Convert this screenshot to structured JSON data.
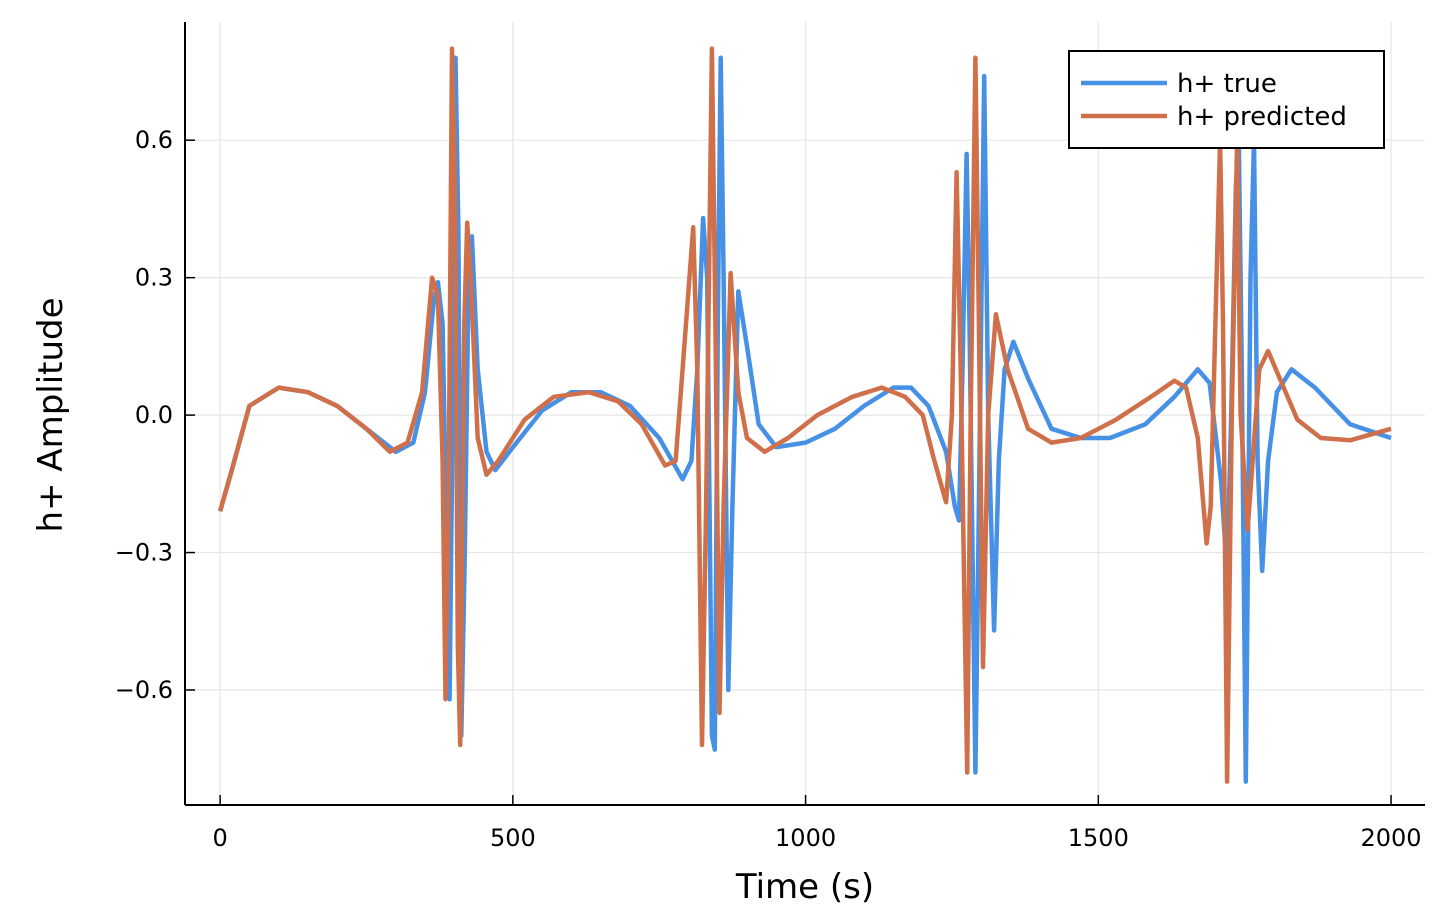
{
  "chart_data": {
    "type": "line",
    "xlabel": "Time (s)",
    "ylabel": "h+ Amplitude",
    "xlim": [
      -60,
      2058
    ],
    "ylim": [
      -0.851,
      0.858
    ],
    "xticks": [
      0,
      500,
      1000,
      1500,
      2000
    ],
    "yticks": [
      {
        "value": -0.6,
        "label": "−0.6"
      },
      {
        "value": -0.3,
        "label": "−0.3"
      },
      {
        "value": 0,
        "label": "0.0"
      },
      0.3,
      0.6
    ],
    "grid": true,
    "legend": "upper right",
    "series": [
      {
        "name": "h+ true",
        "color": "#4690e6",
        "x": [
          0,
          20,
          50,
          100,
          150,
          200,
          250,
          300,
          330,
          350,
          365,
          372,
          380,
          387,
          392,
          397,
          402,
          407,
          412,
          418,
          425,
          430,
          440,
          455,
          470,
          500,
          550,
          600,
          650,
          700,
          750,
          790,
          805,
          815,
          825,
          832,
          840,
          845,
          850,
          855,
          860,
          868,
          875,
          885,
          900,
          920,
          950,
          1000,
          1050,
          1100,
          1150,
          1180,
          1210,
          1240,
          1255,
          1262,
          1268,
          1275,
          1280,
          1290,
          1295,
          1305,
          1312,
          1322,
          1330,
          1340,
          1355,
          1380,
          1420,
          1470,
          1520,
          1580,
          1630,
          1670,
          1690,
          1710,
          1720,
          1727,
          1735,
          1740,
          1745,
          1752,
          1760,
          1766,
          1772,
          1780,
          1790,
          1805,
          1830,
          1870,
          1930,
          2000
        ],
        "values": [
          -0.21,
          -0.12,
          0.02,
          0.06,
          0.05,
          0.02,
          -0.03,
          -0.08,
          -0.06,
          0.05,
          0.25,
          0.29,
          0.2,
          -0.3,
          -0.62,
          0.0,
          0.78,
          0.4,
          -0.7,
          -0.3,
          0.35,
          0.39,
          0.1,
          -0.08,
          -0.12,
          -0.07,
          0.01,
          0.05,
          0.05,
          0.02,
          -0.05,
          -0.14,
          -0.1,
          0.1,
          0.43,
          0.3,
          -0.7,
          -0.73,
          0.2,
          0.78,
          0.3,
          -0.6,
          -0.2,
          0.27,
          0.15,
          -0.02,
          -0.07,
          -0.06,
          -0.03,
          0.02,
          0.06,
          0.06,
          0.02,
          -0.08,
          -0.2,
          -0.23,
          0.1,
          0.57,
          0.2,
          -0.78,
          -0.3,
          0.74,
          0.0,
          -0.47,
          -0.1,
          0.1,
          0.16,
          0.08,
          -0.03,
          -0.05,
          -0.05,
          -0.02,
          0.04,
          0.1,
          0.07,
          -0.15,
          -0.35,
          0.0,
          0.5,
          0.6,
          0.1,
          -0.8,
          0.3,
          0.6,
          -0.1,
          -0.34,
          -0.1,
          0.05,
          0.1,
          0.06,
          -0.02,
          -0.05
        ]
      },
      {
        "name": "h+ predicted",
        "color": "#d0704a",
        "x": [
          0,
          20,
          50,
          100,
          150,
          200,
          250,
          290,
          320,
          345,
          362,
          372,
          380,
          385,
          390,
          396,
          401,
          406,
          410,
          417,
          422,
          428,
          440,
          455,
          475,
          520,
          570,
          630,
          680,
          720,
          760,
          778,
          790,
          808,
          815,
          823,
          830,
          840,
          846,
          853,
          860,
          872,
          885,
          900,
          930,
          970,
          1020,
          1080,
          1130,
          1170,
          1200,
          1220,
          1240,
          1250,
          1258,
          1265,
          1276,
          1282,
          1290,
          1296,
          1303,
          1312,
          1325,
          1345,
          1380,
          1420,
          1470,
          1530,
          1590,
          1630,
          1650,
          1670,
          1685,
          1692,
          1700,
          1708,
          1713,
          1720,
          1728,
          1737,
          1743,
          1755,
          1775,
          1790,
          1810,
          1840,
          1880,
          1930,
          2000
        ],
        "values": [
          -0.21,
          -0.12,
          0.02,
          0.06,
          0.05,
          0.02,
          -0.03,
          -0.08,
          -0.06,
          0.05,
          0.3,
          0.26,
          -0.1,
          -0.62,
          -0.2,
          0.8,
          0.5,
          -0.5,
          -0.72,
          0.2,
          0.42,
          0.3,
          -0.05,
          -0.13,
          -0.1,
          -0.01,
          0.04,
          0.05,
          0.03,
          -0.02,
          -0.11,
          -0.1,
          0.1,
          0.41,
          0.1,
          -0.72,
          -0.2,
          0.8,
          0.2,
          -0.65,
          -0.2,
          0.31,
          0.05,
          -0.05,
          -0.08,
          -0.05,
          0.0,
          0.04,
          0.06,
          0.04,
          0.0,
          -0.1,
          -0.19,
          0.0,
          0.53,
          0.1,
          -0.78,
          0.0,
          0.78,
          0.2,
          -0.55,
          0.0,
          0.22,
          0.1,
          -0.03,
          -0.06,
          -0.05,
          -0.01,
          0.04,
          0.075,
          0.06,
          -0.05,
          -0.28,
          -0.2,
          0.2,
          0.6,
          0.2,
          -0.8,
          0.0,
          0.6,
          0.0,
          -0.25,
          0.1,
          0.14,
          0.08,
          -0.01,
          -0.05,
          -0.055,
          -0.03
        ]
      }
    ]
  }
}
